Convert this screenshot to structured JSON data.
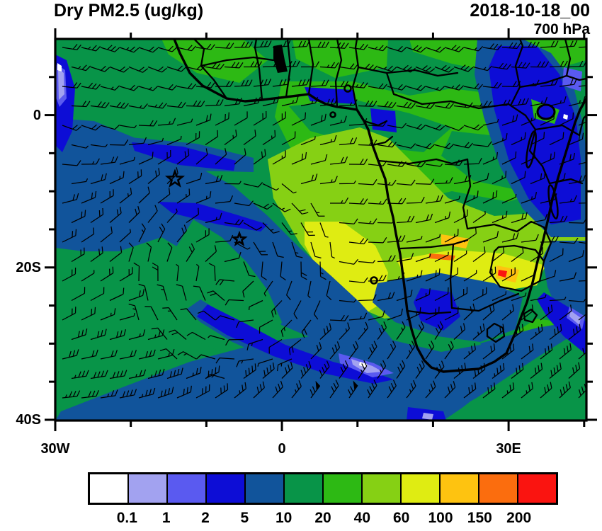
{
  "header": {
    "title": "Dry PM2.5 (ug/kg)",
    "timestamp": "2018-10-18_00",
    "level": "700 hPa"
  },
  "axes": {
    "y_labels": [
      {
        "text": "0",
        "lat": 0
      },
      {
        "text": "20S",
        "lat": -20
      },
      {
        "text": "40S",
        "lat": -40
      }
    ],
    "x_labels": [
      {
        "text": "30W",
        "lon": -30
      },
      {
        "text": "0",
        "lon": 0
      },
      {
        "text": "30E",
        "lon": 30
      }
    ]
  },
  "legend": {
    "labels": [
      "0.1",
      "1",
      "2",
      "5",
      "10",
      "20",
      "40",
      "60",
      "100",
      "150",
      "200"
    ],
    "colors": [
      "#ffffff",
      "#a2a2f0",
      "#5a5af0",
      "#0d0dd6",
      "#11549b",
      "#089448",
      "#2db914",
      "#86d014",
      "#dfec12",
      "#fec310",
      "#fb6d0e",
      "#fa1410"
    ]
  },
  "chart_data": {
    "type": "heatmap",
    "title": "Dry PM2.5 (ug/kg)",
    "timestamp": "2018-10-18_00",
    "pressure_level": "700 hPa",
    "units": "ug/kg",
    "colorbar_levels": [
      0.1,
      1,
      2,
      5,
      10,
      20,
      40,
      60,
      100,
      150,
      200
    ],
    "colorbar_colors": [
      "#ffffff",
      "#a2a2f0",
      "#5a5af0",
      "#0d0dd6",
      "#11549b",
      "#089448",
      "#2db914",
      "#86d014",
      "#dfec12",
      "#fec310",
      "#fb6d0e",
      "#fa1410"
    ],
    "lon_range": [
      -30,
      40
    ],
    "lat_range": [
      -40,
      10
    ],
    "lon_tick_labels": [
      "30W",
      "0",
      "30E"
    ],
    "lat_tick_labels": [
      "0",
      "20S",
      "40S"
    ],
    "overlays": [
      "wind barbs",
      "country borders",
      "star markers",
      "island circles"
    ],
    "notes": "Filled-contour PM2.5 field over Africa: low values (blue/white) over oceans and East Africa, high values (yellow/orange/red) over Angola-Zambia-Zimbabwe biomass burning region"
  }
}
